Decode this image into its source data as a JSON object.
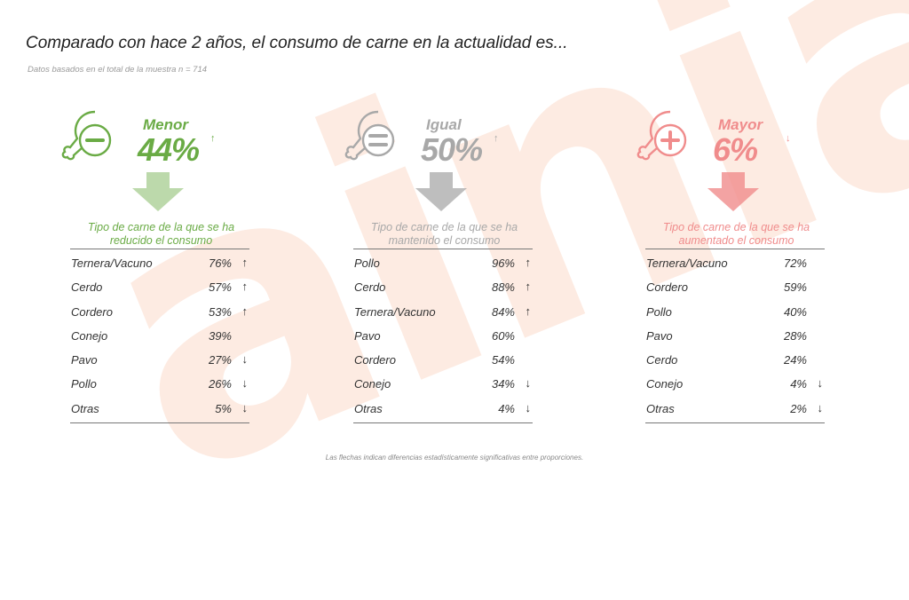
{
  "watermark": "ainia",
  "title": "Comparado con hace 2 años, el consumo de carne en la actualidad es...",
  "subtitle": "Datos basados en el total de la muestra n = 714",
  "footnote": "Las flechas indican diferencias estadísticamente significativas entre proporciones.",
  "colors": {
    "menor": "#6aab45",
    "igual": "#a8a8a8",
    "mayor": "#f08c8c"
  },
  "groups": [
    {
      "label": "Menor",
      "percent": "44%",
      "trend": "↑",
      "icon": "drumstick-minus-icon",
      "caption_line1": "Tipo de carne de la que se ha",
      "caption_line2": "reducido el consumo",
      "rows": [
        {
          "name": "Ternera/Vacuno",
          "value": "76%",
          "arrow": "↑"
        },
        {
          "name": "Cerdo",
          "value": "57%",
          "arrow": "↑"
        },
        {
          "name": "Cordero",
          "value": "53%",
          "arrow": "↑"
        },
        {
          "name": "Conejo",
          "value": "39%",
          "arrow": ""
        },
        {
          "name": "Pavo",
          "value": "27%",
          "arrow": "↓"
        },
        {
          "name": "Pollo",
          "value": "26%",
          "arrow": "↓"
        },
        {
          "name": "Otras",
          "value": "5%",
          "arrow": "↓"
        }
      ]
    },
    {
      "label": "Igual",
      "percent": "50%",
      "trend": "↑",
      "icon": "drumstick-equal-icon",
      "caption_line1": "Tipo de carne de la que se ha",
      "caption_line2": "mantenido el consumo",
      "rows": [
        {
          "name": "Pollo",
          "value": "96%",
          "arrow": "↑"
        },
        {
          "name": "Cerdo",
          "value": "88%",
          "arrow": "↑"
        },
        {
          "name": "Ternera/Vacuno",
          "value": "84%",
          "arrow": "↑"
        },
        {
          "name": "Pavo",
          "value": "60%",
          "arrow": ""
        },
        {
          "name": "Cordero",
          "value": "54%",
          "arrow": ""
        },
        {
          "name": "Conejo",
          "value": "34%",
          "arrow": "↓"
        },
        {
          "name": "Otras",
          "value": "4%",
          "arrow": "↓"
        }
      ]
    },
    {
      "label": "Mayor",
      "percent": "6%",
      "trend": "↓",
      "icon": "drumstick-plus-icon",
      "caption_line1": "Tipo de carne de la que se ha",
      "caption_line2": "aumentado el consumo",
      "rows": [
        {
          "name": "Ternera/Vacuno",
          "value": "72%",
          "arrow": ""
        },
        {
          "name": "Cordero",
          "value": "59%",
          "arrow": ""
        },
        {
          "name": "Pollo",
          "value": "40%",
          "arrow": ""
        },
        {
          "name": "Pavo",
          "value": "28%",
          "arrow": ""
        },
        {
          "name": "Cerdo",
          "value": "24%",
          "arrow": ""
        },
        {
          "name": "Conejo",
          "value": "4%",
          "arrow": "↓"
        },
        {
          "name": "Otras",
          "value": "2%",
          "arrow": "↓"
        }
      ]
    }
  ],
  "chart_data": {
    "type": "table",
    "title": "Comparado con hace 2 años, el consumo de carne en la actualidad es...",
    "summary": [
      {
        "category": "Menor",
        "value": 44,
        "unit": "%",
        "trend": "up"
      },
      {
        "category": "Igual",
        "value": 50,
        "unit": "%",
        "trend": "up"
      },
      {
        "category": "Mayor",
        "value": 6,
        "unit": "%",
        "trend": "down"
      }
    ],
    "tables": [
      {
        "name": "Tipo de carne de la que se ha reducido el consumo",
        "columns": [
          "Tipo de carne",
          "%"
        ],
        "rows": [
          [
            "Ternera/Vacuno",
            76
          ],
          [
            "Cerdo",
            57
          ],
          [
            "Cordero",
            53
          ],
          [
            "Conejo",
            39
          ],
          [
            "Pavo",
            27
          ],
          [
            "Pollo",
            26
          ],
          [
            "Otras",
            5
          ]
        ]
      },
      {
        "name": "Tipo de carne de la que se ha mantenido el consumo",
        "columns": [
          "Tipo de carne",
          "%"
        ],
        "rows": [
          [
            "Pollo",
            96
          ],
          [
            "Cerdo",
            88
          ],
          [
            "Ternera/Vacuno",
            84
          ],
          [
            "Pavo",
            60
          ],
          [
            "Cordero",
            54
          ],
          [
            "Conejo",
            34
          ],
          [
            "Otras",
            4
          ]
        ]
      },
      {
        "name": "Tipo de carne de la que se ha aumentado el consumo",
        "columns": [
          "Tipo de carne",
          "%"
        ],
        "rows": [
          [
            "Ternera/Vacuno",
            72
          ],
          [
            "Cordero",
            59
          ],
          [
            "Pollo",
            40
          ],
          [
            "Pavo",
            28
          ],
          [
            "Cerdo",
            24
          ],
          [
            "Conejo",
            4
          ],
          [
            "Otras",
            2
          ]
        ]
      }
    ]
  }
}
